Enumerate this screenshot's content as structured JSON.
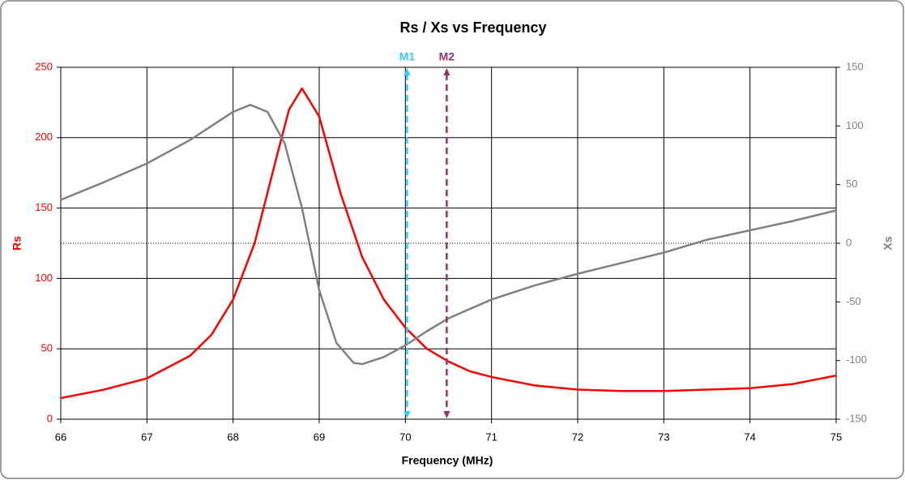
{
  "chart_data": {
    "type": "line",
    "title": "Rs / Xs  vs  Frequency",
    "xlabel": "Frequency (MHz)",
    "ylabel": "Rs",
    "y2label": "Xs",
    "ylabel_color": "#ff0000",
    "y2label_color": "#808080",
    "xlim": [
      66,
      75
    ],
    "xticks": [
      66,
      67,
      68,
      69,
      70,
      71,
      72,
      73,
      74,
      75
    ],
    "ylim": [
      0,
      250
    ],
    "yticks": [
      0,
      50,
      100,
      150,
      200,
      250
    ],
    "y2lim": [
      -150,
      150
    ],
    "y2ticks": [
      -150,
      -100,
      -50,
      0,
      50,
      100,
      150
    ],
    "grid": true,
    "y2_zero_line": true,
    "series": [
      {
        "color": "#ff0000",
        "x": [
          66,
          66.5,
          67,
          67.5,
          67.75,
          68,
          68.25,
          68.5,
          68.65,
          68.8,
          69,
          69.25,
          69.5,
          69.75,
          70,
          70.25,
          70.5,
          70.75,
          71,
          71.5,
          72,
          72.5,
          73,
          73.5,
          74,
          74.5,
          75
        ],
        "values": [
          15,
          21,
          29,
          45,
          60,
          85,
          125,
          185,
          220,
          235,
          215,
          160,
          115,
          85,
          65,
          50,
          41,
          34,
          30,
          24,
          21,
          20,
          20,
          21,
          22,
          25,
          31
        ]
      },
      {
        "color": "#808080",
        "axis": "y2",
        "x": [
          66,
          66.5,
          67,
          67.5,
          68,
          68.2,
          68.4,
          68.6,
          68.8,
          69,
          69.2,
          69.4,
          69.5,
          69.75,
          70,
          70.25,
          70.5,
          71,
          71.5,
          72,
          72.5,
          73,
          73.5,
          74,
          74.5,
          75
        ],
        "values": [
          37,
          52,
          68,
          88,
          112,
          118,
          112,
          85,
          30,
          -40,
          -85,
          -102,
          -103,
          -97,
          -87,
          -75,
          -64,
          -48,
          -36,
          -26,
          -17,
          -8,
          3,
          11,
          19,
          28
        ]
      }
    ],
    "markers": [
      {
        "name": "M1",
        "x": 70.02,
        "color": "#33ccff"
      },
      {
        "name": "M2",
        "x": 70.48,
        "color": "#993366"
      }
    ]
  }
}
